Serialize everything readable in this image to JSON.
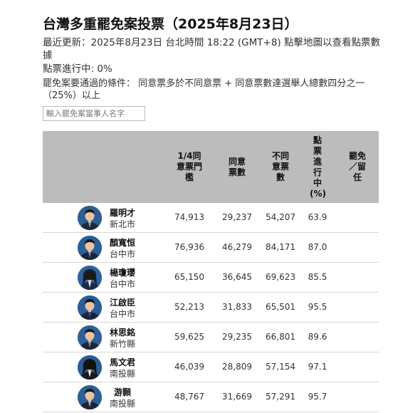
{
  "page": {
    "title": "台灣多重罷免案投票（2025年8月23日）",
    "updated": "最近更新：2025年8月23日 台北時間 18:22 (GMT+8) 點擊地圖以查看點票數據",
    "progress": "點票進行中: 0%",
    "condition": "罷免案要通過的條件： 同意票多於不同意票 + 同意票數達選舉人總數四分之一（25%）以上"
  },
  "search": {
    "placeholder": "輸入罷免案當事人名字"
  },
  "table": {
    "headers": {
      "threshold": "1/4同意票門檻",
      "agree": "同意票數",
      "disagree": "不同意票數",
      "counted": "點票進行中(%)",
      "result": "罷免／留任"
    },
    "rows": [
      {
        "name": "羅明才",
        "city": "新北市",
        "threshold": "74,913",
        "agree": "29,237",
        "disagree": "54,207",
        "counted": "63.9",
        "result": "",
        "avatar_bg": "#2f5f91",
        "suit": "#1d2a3c",
        "tie": "#9aa4b8",
        "hair": "#1a1a1a",
        "female": false
      },
      {
        "name": "顏寬恒",
        "city": "台中市",
        "threshold": "76,936",
        "agree": "46,279",
        "disagree": "84,171",
        "counted": "87.0",
        "result": "",
        "avatar_bg": "#2a5f97",
        "suit": "#1b2536",
        "tie": "#7a8aa6",
        "hair": "#1a1a1a",
        "female": false
      },
      {
        "name": "楊瓊瓔",
        "city": "台中市",
        "threshold": "65,150",
        "agree": "36,645",
        "disagree": "69,623",
        "counted": "85.5",
        "result": "",
        "avatar_bg": "#2c62a0",
        "suit": "#1e2b44",
        "tie": "#dfe6ef",
        "hair": "#1b1b1b",
        "female": true
      },
      {
        "name": "江啟臣",
        "city": "台中市",
        "threshold": "52,213",
        "agree": "31,833",
        "disagree": "65,501",
        "counted": "95.5",
        "result": "",
        "avatar_bg": "#2b5d96",
        "suit": "#1c2434",
        "tie": "#2f5fa8",
        "hair": "#141414",
        "female": false
      },
      {
        "name": "林思銘",
        "city": "新竹縣",
        "threshold": "59,625",
        "agree": "29,235",
        "disagree": "66,801",
        "counted": "89.6",
        "result": "",
        "avatar_bg": "#2e6199",
        "suit": "#1d2738",
        "tie": "#8a97ad",
        "hair": "#1a1a1a",
        "female": false
      },
      {
        "name": "馬文君",
        "city": "南投縣",
        "threshold": "46,039",
        "agree": "28,809",
        "disagree": "57,154",
        "counted": "97.1",
        "result": "",
        "avatar_bg": "#2a5c94",
        "suit": "#1a1a1a",
        "tie": "#e8e8e8",
        "hair": "#121212",
        "female": true
      },
      {
        "name": "游顥",
        "city": "南投縣",
        "threshold": "48,767",
        "agree": "31,669",
        "disagree": "57,291",
        "counted": "95.7",
        "result": "",
        "avatar_bg": "#2d5f98",
        "suit": "#1c2535",
        "tie": "#a8b2c4",
        "hair": "#181818",
        "female": false
      }
    ]
  }
}
